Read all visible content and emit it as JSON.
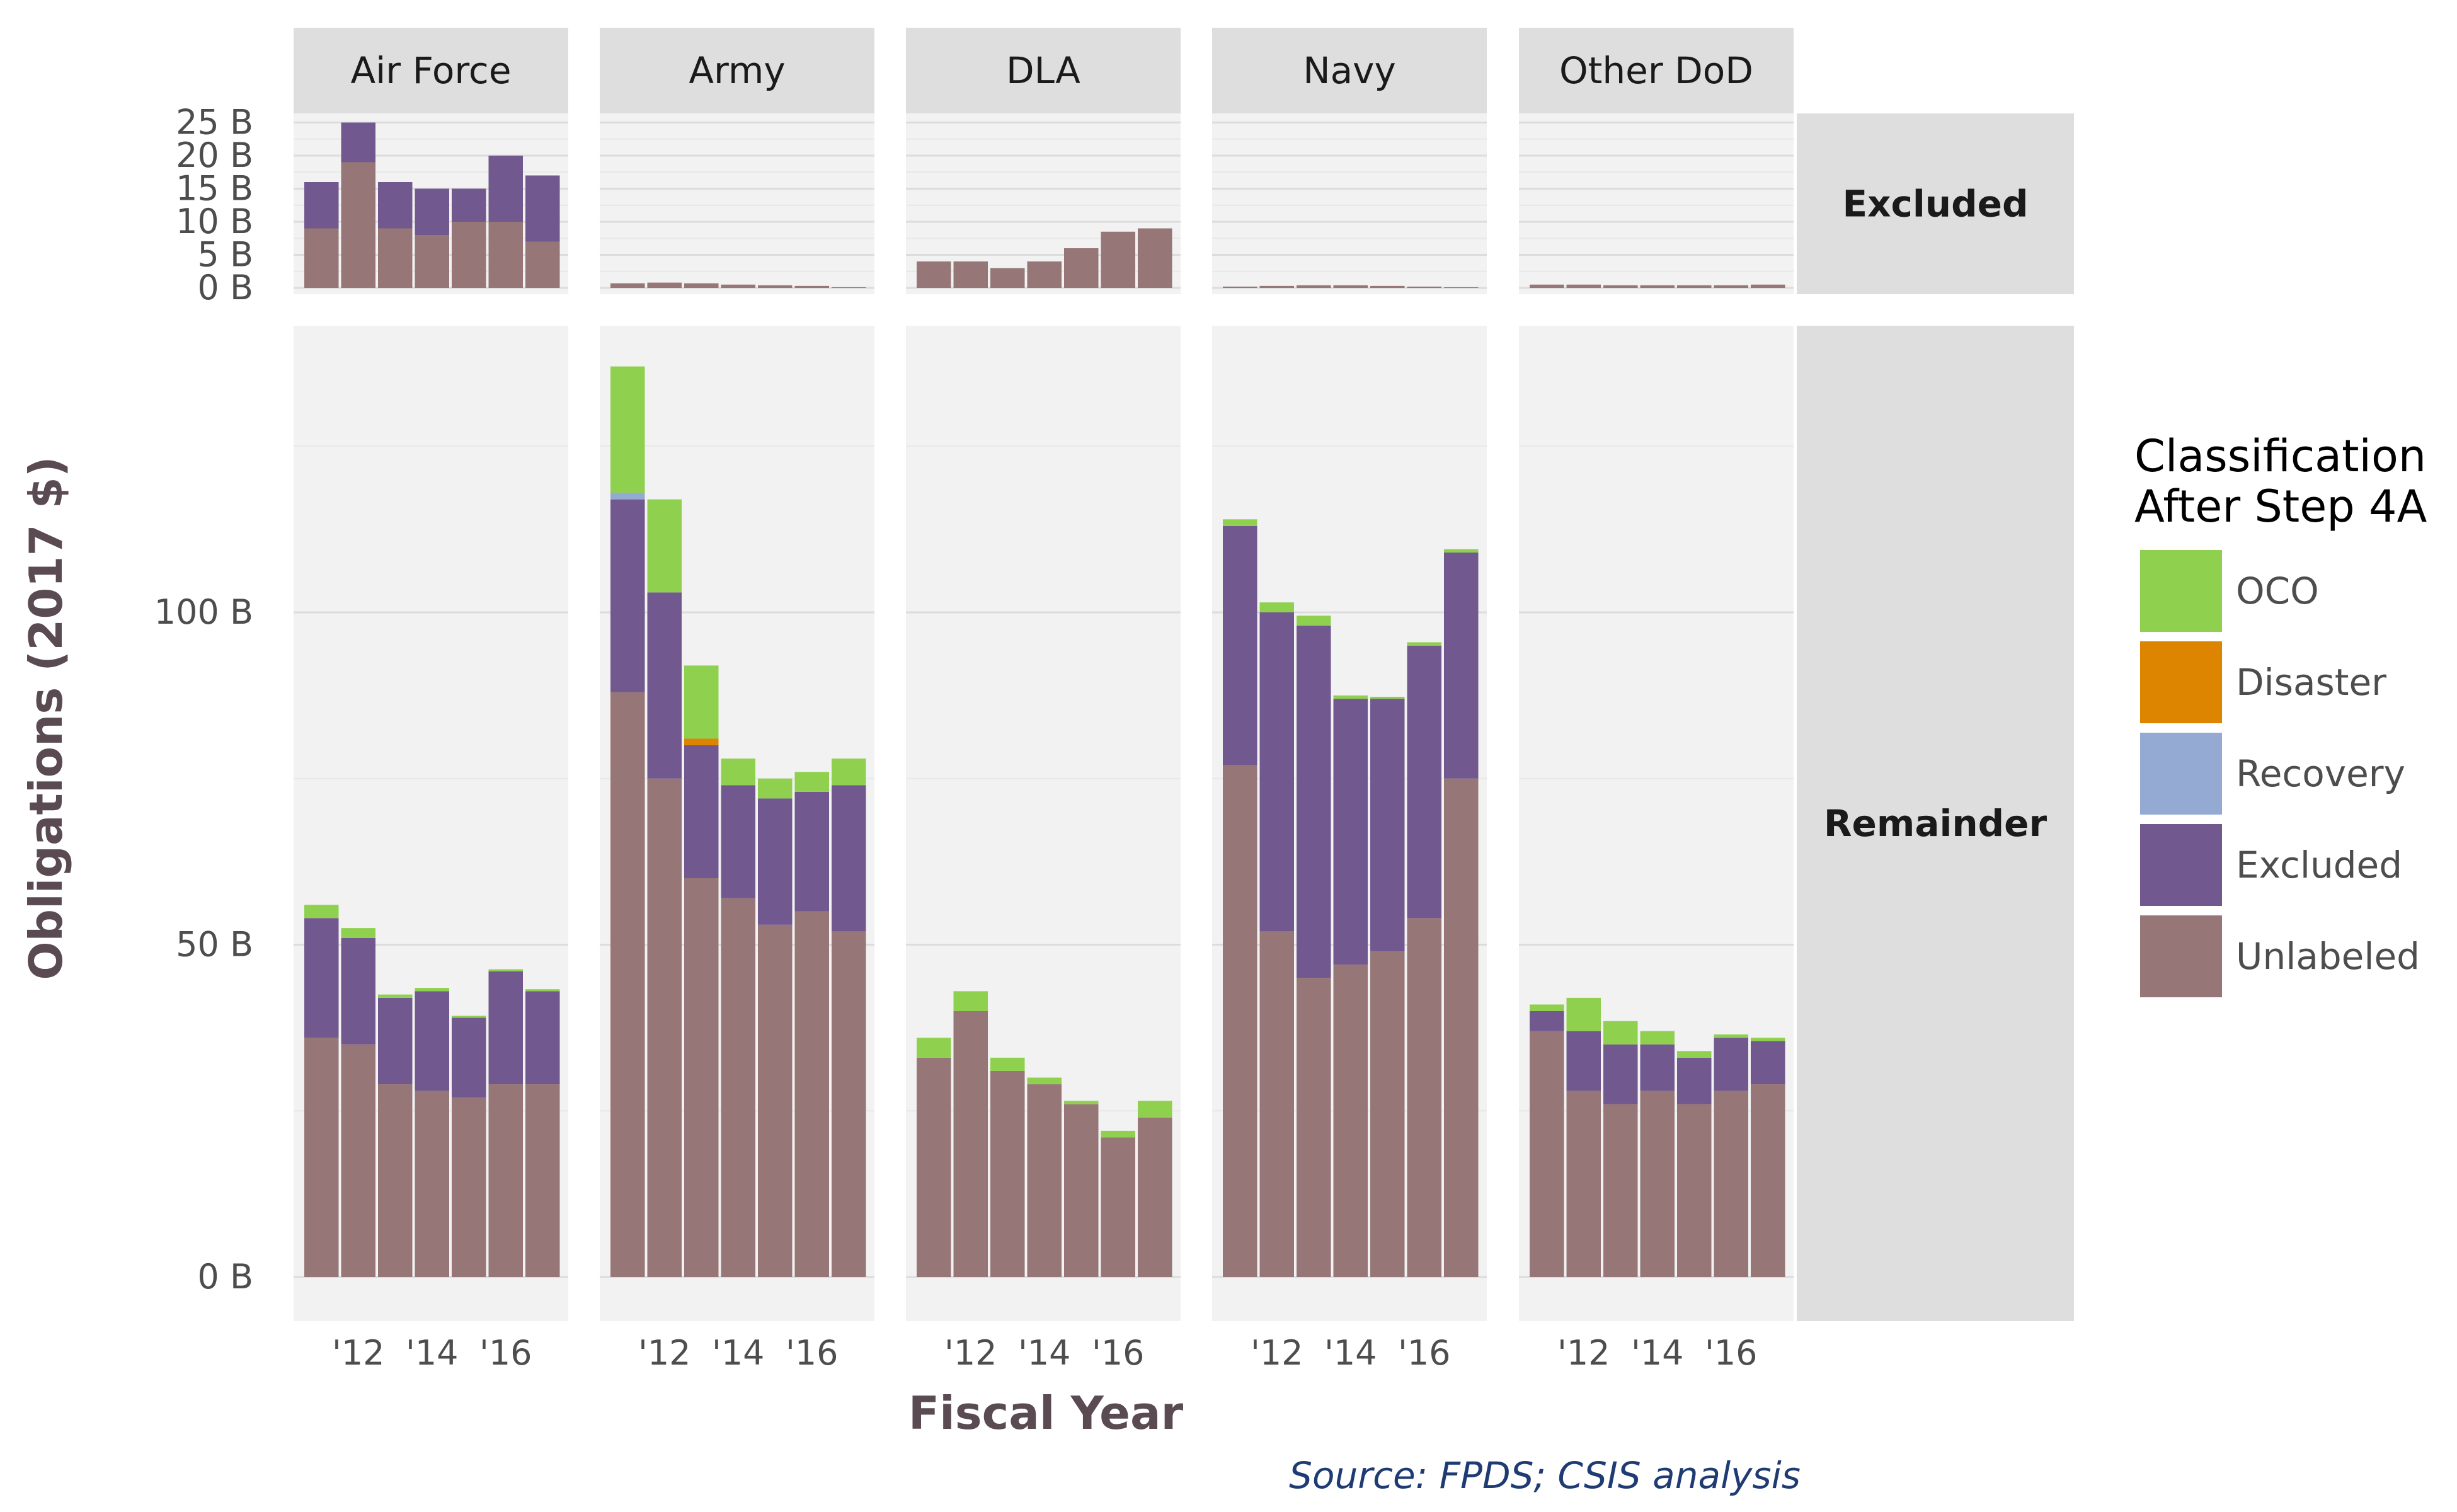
{
  "chart_data": {
    "type": "bar",
    "stacked": true,
    "facet_columns": [
      "Air Force",
      "Army",
      "DLA",
      "Navy",
      "Other DoD"
    ],
    "facet_rows": [
      "Excluded",
      "Remainder"
    ],
    "x": [
      2011,
      2012,
      2013,
      2014,
      2015,
      2016,
      2017
    ],
    "x_tick_labels": [
      "'12",
      "'14",
      "'16"
    ],
    "x_tick_values": [
      2012,
      2014,
      2016
    ],
    "xlabel": "Fiscal Year",
    "ylabel": "Obligations (2017 $)",
    "excluded_y_ticks": [
      "0 B",
      "5 B",
      "10 B",
      "15 B",
      "20 B",
      "25 B"
    ],
    "excluded_y_tick_values": [
      0,
      5,
      10,
      15,
      20,
      25
    ],
    "excluded_ylim": [
      0,
      26
    ],
    "remainder_y_ticks": [
      "0 B",
      "50 B",
      "100 B"
    ],
    "remainder_y_tick_values": [
      0,
      50,
      100
    ],
    "remainder_ylim": [
      -6,
      142
    ],
    "legend_title": [
      "Classification",
      "After Step 4A"
    ],
    "legend_position": "right",
    "series": [
      {
        "name": "OCO",
        "color": "#8fd14f"
      },
      {
        "name": "Disaster",
        "color": "#dd8500"
      },
      {
        "name": "Recovery",
        "color": "#95aad3"
      },
      {
        "name": "Excluded",
        "color": "#71588f"
      },
      {
        "name": "Unlabeled",
        "color": "#967676"
      }
    ],
    "panels": {
      "Excluded": {
        "Air Force": {
          "Unlabeled": [
            9,
            19,
            9,
            8,
            10,
            10,
            7
          ],
          "Excluded": [
            7,
            6,
            7,
            7,
            5,
            10,
            10
          ],
          "Recovery": [
            0,
            0,
            0,
            0,
            0,
            0,
            0
          ],
          "Disaster": [
            0,
            0,
            0,
            0,
            0,
            0,
            0
          ],
          "OCO": [
            0,
            0,
            0,
            0,
            0,
            0,
            0
          ]
        },
        "Army": {
          "Unlabeled": [
            0.7,
            0.8,
            0.7,
            0.5,
            0.4,
            0.3,
            0.1
          ],
          "Excluded": [
            0,
            0,
            0,
            0,
            0,
            0,
            0
          ],
          "Recovery": [
            0,
            0,
            0,
            0,
            0,
            0,
            0
          ],
          "Disaster": [
            0,
            0,
            0,
            0,
            0,
            0,
            0
          ],
          "OCO": [
            0,
            0,
            0,
            0,
            0,
            0,
            0
          ]
        },
        "DLA": {
          "Unlabeled": [
            4,
            4,
            3,
            4,
            6,
            8.5,
            9
          ],
          "Excluded": [
            0,
            0,
            0,
            0,
            0,
            0,
            0
          ],
          "Recovery": [
            0,
            0,
            0,
            0,
            0,
            0,
            0
          ],
          "Disaster": [
            0,
            0,
            0,
            0,
            0,
            0,
            0
          ],
          "OCO": [
            0,
            0,
            0,
            0,
            0,
            0,
            0
          ]
        },
        "Navy": {
          "Unlabeled": [
            0.2,
            0.3,
            0.4,
            0.4,
            0.3,
            0.2,
            0.1
          ],
          "Excluded": [
            0,
            0,
            0,
            0,
            0,
            0,
            0
          ],
          "Recovery": [
            0,
            0,
            0,
            0,
            0,
            0,
            0
          ],
          "Disaster": [
            0,
            0,
            0,
            0,
            0,
            0,
            0
          ],
          "OCO": [
            0,
            0,
            0,
            0,
            0,
            0,
            0
          ]
        },
        "Other DoD": {
          "Unlabeled": [
            0.5,
            0.5,
            0.4,
            0.4,
            0.4,
            0.4,
            0.5
          ],
          "Excluded": [
            0,
            0,
            0,
            0,
            0,
            0,
            0
          ],
          "Recovery": [
            0,
            0,
            0,
            0,
            0,
            0,
            0
          ],
          "Disaster": [
            0,
            0,
            0,
            0,
            0,
            0,
            0
          ],
          "OCO": [
            0,
            0,
            0,
            0,
            0,
            0,
            0
          ]
        }
      },
      "Remainder": {
        "Air Force": {
          "Unlabeled": [
            36,
            35,
            29,
            28,
            27,
            29,
            29
          ],
          "Excluded": [
            18,
            16,
            13,
            15,
            12,
            17,
            14
          ],
          "Recovery": [
            0,
            0,
            0,
            0,
            0,
            0,
            0
          ],
          "Disaster": [
            0,
            0,
            0,
            0,
            0,
            0,
            0
          ],
          "OCO": [
            2,
            1.5,
            0.5,
            0.5,
            0.3,
            0.3,
            0.3
          ]
        },
        "Army": {
          "Unlabeled": [
            88,
            75,
            60,
            57,
            53,
            55,
            52
          ],
          "Excluded": [
            29,
            28,
            20,
            17,
            19,
            18,
            22
          ],
          "Recovery": [
            1,
            0,
            0,
            0,
            0,
            0,
            0
          ],
          "Disaster": [
            0,
            0,
            1,
            0,
            0,
            0,
            0
          ],
          "OCO": [
            19,
            14,
            11,
            4,
            3,
            3,
            4
          ]
        },
        "DLA": {
          "Unlabeled": [
            33,
            40,
            31,
            29,
            26,
            21,
            24
          ],
          "Excluded": [
            0,
            0,
            0,
            0,
            0,
            0,
            0
          ],
          "Recovery": [
            0,
            0,
            0,
            0,
            0,
            0,
            0
          ],
          "Disaster": [
            0,
            0,
            0,
            0,
            0,
            0,
            0
          ],
          "OCO": [
            3,
            3,
            2,
            1,
            0.5,
            1,
            2.5
          ]
        },
        "Navy": {
          "Unlabeled": [
            77,
            52,
            45,
            47,
            49,
            54,
            75
          ],
          "Excluded": [
            36,
            48,
            53,
            40,
            38,
            41,
            34
          ],
          "Recovery": [
            0,
            0,
            0,
            0,
            0,
            0,
            0
          ],
          "Disaster": [
            0,
            0,
            0,
            0,
            0,
            0,
            0
          ],
          "OCO": [
            1,
            1.5,
            1.5,
            0.5,
            0.3,
            0.5,
            0.5
          ]
        },
        "Other DoD": {
          "Unlabeled": [
            37,
            28,
            26,
            28,
            26,
            28,
            29
          ],
          "Excluded": [
            3,
            9,
            9,
            7,
            7,
            8,
            6.5
          ],
          "Recovery": [
            0,
            0,
            0,
            0,
            0,
            0,
            0
          ],
          "Disaster": [
            0,
            0,
            0,
            0,
            0,
            0,
            0
          ],
          "OCO": [
            1,
            5,
            3.5,
            2,
            1,
            0.5,
            0.5
          ]
        }
      }
    },
    "source": "Source: FPDS; CSIS analysis"
  }
}
